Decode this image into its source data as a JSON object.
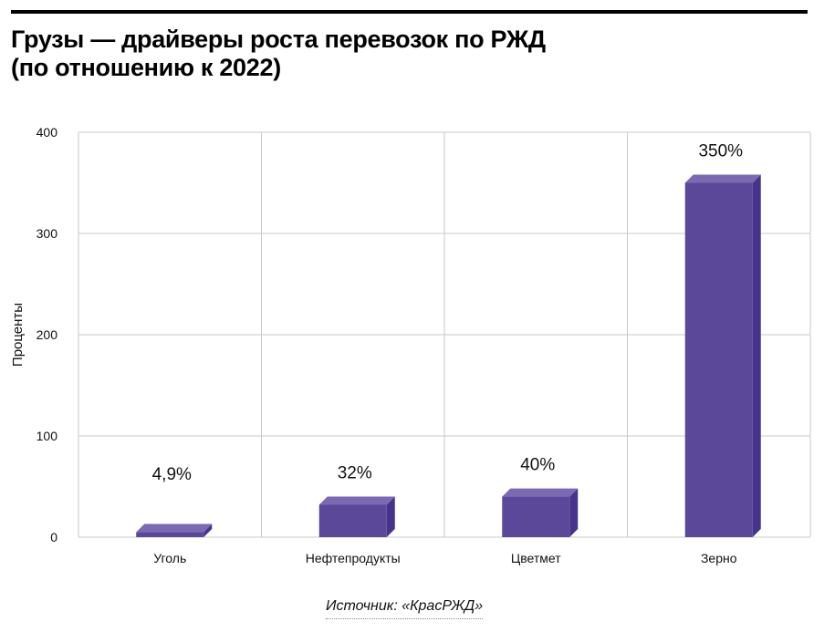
{
  "title_line1": "Грузы — драйверы роста перевозок по РЖД",
  "title_line2": "(по отношению к 2022)",
  "source": "Источник: «КрасРЖД»",
  "chart_data": {
    "type": "bar",
    "title": "Грузы — драйверы роста перевозок по РЖД (по отношению к 2022)",
    "xlabel": "",
    "ylabel": "Проценты",
    "ylim": [
      0,
      400
    ],
    "yticks": [
      0,
      100,
      200,
      300,
      400
    ],
    "grid": true,
    "style": "3d",
    "categories": [
      "Уголь",
      "Нефтепродукты",
      "Цветмет",
      "Зерно"
    ],
    "values": [
      4.9,
      32,
      40,
      350
    ],
    "data_labels": [
      "4,9%",
      "32%",
      "40%",
      "350%"
    ],
    "colors": {
      "front": "#5b4899",
      "top": "#7b69b1",
      "side": "#45348a"
    }
  }
}
